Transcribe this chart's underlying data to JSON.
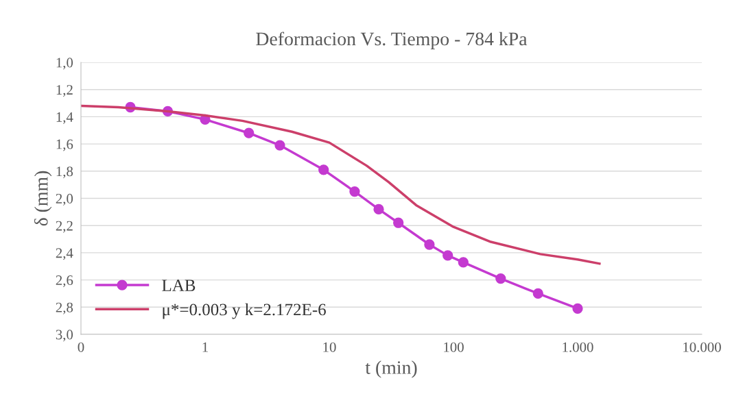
{
  "chart_data": {
    "type": "line",
    "title": "Deformacion Vs. Tiempo - 784 kPa",
    "xlabel": "t (min)",
    "ylabel": "δ (mm)",
    "log": "x",
    "grid": "y",
    "legend": "bottom left",
    "xlim": [
      0.1,
      10000
    ],
    "xticks": [
      {
        "value": 0.1,
        "label": "0"
      },
      1,
      10,
      100,
      {
        "value": 1000,
        "label": "1.000"
      },
      {
        "value": 10000,
        "label": "10.000"
      }
    ],
    "ylim": [
      3.0,
      1.0
    ],
    "yticks": [
      {
        "value": 1.0,
        "label": "1,0"
      },
      {
        "value": 1.2,
        "label": "1,2"
      },
      {
        "value": 1.4,
        "label": "1,4"
      },
      {
        "value": 1.6,
        "label": "1,6"
      },
      {
        "value": 1.8,
        "label": "1,8"
      },
      {
        "value": 2.0,
        "label": "2,0"
      },
      {
        "value": 2.2,
        "label": "2,2"
      },
      {
        "value": 2.4,
        "label": "2,4"
      },
      {
        "value": 2.6,
        "label": "2,6"
      },
      {
        "value": 2.8,
        "label": "2,8"
      },
      {
        "value": 3.0,
        "label": "3,0"
      }
    ],
    "series": [
      {
        "name": "LAB",
        "color": "#c43ad0",
        "marker": "circle",
        "x": [
          0.25,
          0.5,
          1,
          2.25,
          4,
          9,
          16,
          25,
          36,
          64,
          90,
          120,
          240,
          480,
          1000
        ],
        "values": [
          1.33,
          1.36,
          1.42,
          1.52,
          1.61,
          1.79,
          1.95,
          2.08,
          2.18,
          2.34,
          2.42,
          2.47,
          2.59,
          2.7,
          2.81
        ]
      },
      {
        "name": "μ*=0.003 y k=2.172E-6",
        "color": "#cc3f6a",
        "marker": "none",
        "x": [
          0.1,
          0.2,
          0.5,
          1,
          2,
          5,
          10,
          20,
          30,
          50,
          100,
          200,
          500,
          1000,
          1500
        ],
        "values": [
          1.32,
          1.33,
          1.36,
          1.39,
          1.43,
          1.51,
          1.59,
          1.76,
          1.88,
          2.05,
          2.21,
          2.32,
          2.41,
          2.45,
          2.48
        ]
      }
    ]
  }
}
